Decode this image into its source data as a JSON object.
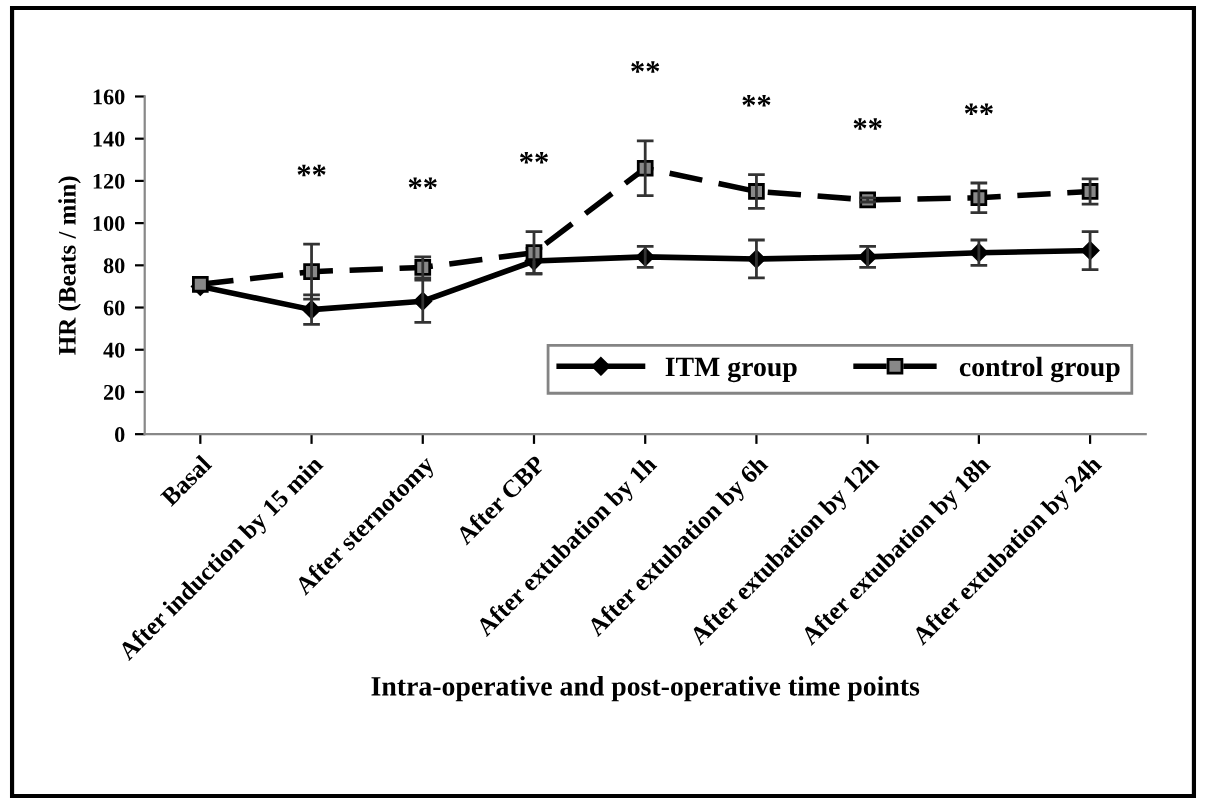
{
  "chart_data": {
    "type": "line",
    "xlabel": "Intra-operative and post-operative time points",
    "ylabel": "HR (Beats / min)",
    "categories": [
      "Basal",
      "After induction by 15 min",
      "After sternotomy",
      "After CBP",
      "After extubation by 1h",
      "After extubation by 6h",
      "After extubation by 12h",
      "After extubation by 18h",
      "After extubation by 24h"
    ],
    "series": [
      {
        "name": "ITM group",
        "color": "#000000",
        "marker": "diamond",
        "line_style": "solid",
        "values": [
          70,
          59,
          63,
          82,
          84,
          83,
          84,
          86,
          87
        ],
        "errors": [
          null,
          7,
          10,
          6,
          5,
          9,
          5,
          6,
          9
        ]
      },
      {
        "name": "control group",
        "color": "#000000",
        "marker": "square",
        "line_style": "dashed",
        "values": [
          71,
          77,
          79,
          86,
          126,
          115,
          111,
          112,
          115
        ],
        "errors": [
          null,
          13,
          5,
          10,
          13,
          8,
          1,
          7,
          6
        ]
      }
    ],
    "ylim": [
      0,
      160
    ],
    "yticks": [
      0,
      20,
      40,
      60,
      80,
      100,
      120,
      140,
      160
    ],
    "grid": false,
    "legend": "bottom right",
    "annotations": [
      "**",
      "**",
      "**",
      "**",
      "**",
      "**",
      "**"
    ]
  }
}
